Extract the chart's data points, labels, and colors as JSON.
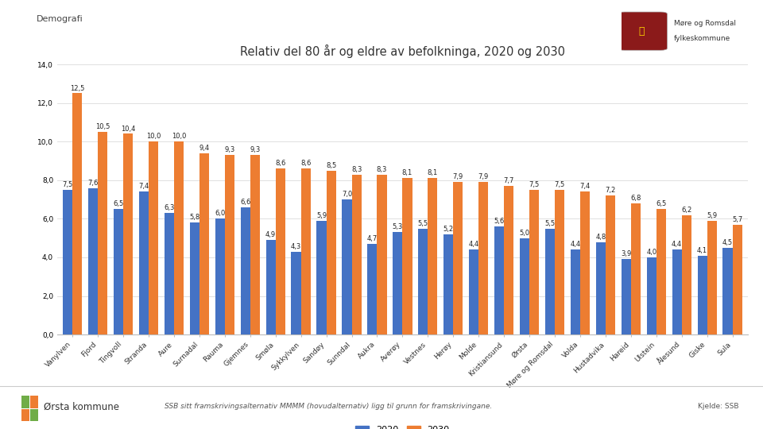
{
  "title": "Relativ del 80 år og eldre av befolkninga, 2020 og 2030",
  "categories_display": [
    "Vanylven",
    "Fjord",
    "Tingvoll",
    "Stranda",
    "Aure",
    "Surnadal",
    "Rauma",
    "Gjemnes",
    "Smøla",
    "Sykkylven",
    "Sandøy",
    "Sunndal",
    "Aukra",
    "Averøy",
    "Vestnes",
    "Herøy",
    "Molde",
    "Kristiansund",
    "Ørsta",
    "Møre og Romsdal",
    "Volda",
    "Hustadvika",
    "Hareid",
    "Ulstein",
    "Ålesund",
    "Giske",
    "Sula"
  ],
  "values_2020": [
    7.5,
    7.6,
    6.5,
    7.4,
    6.3,
    5.8,
    6.0,
    6.6,
    4.9,
    4.3,
    5.9,
    7.0,
    4.7,
    5.3,
    5.5,
    5.2,
    4.4,
    5.6,
    5.0,
    5.5,
    4.4,
    4.8,
    3.9,
    4.0,
    4.4,
    4.1,
    4.5
  ],
  "values_2030": [
    12.5,
    10.5,
    10.4,
    10.0,
    10.0,
    9.4,
    9.3,
    9.3,
    8.6,
    8.6,
    8.5,
    8.3,
    8.3,
    8.1,
    8.1,
    7.9,
    7.9,
    7.7,
    7.5,
    7.5,
    7.4,
    7.2,
    6.8,
    6.5,
    6.2,
    5.9,
    5.7
  ],
  "color_2020": "#4472C4",
  "color_2030": "#ED7D31",
  "ylim": [
    0,
    14.0
  ],
  "yticks": [
    0.0,
    2.0,
    4.0,
    6.0,
    8.0,
    10.0,
    12.0,
    14.0
  ],
  "legend_2020": "2020",
  "legend_2030": "2030",
  "footer_left": "Ørsta kommune",
  "footer_center": "SSB sitt framskrivingsalternativ MMMM (hovudalternativ) ligg til grunn for framskrivingane.",
  "footer_right": "Kjelde: SSB",
  "header_text": "Demografi",
  "bar_width": 0.38,
  "title_fontsize": 10.5,
  "tick_fontsize": 6.5,
  "label_fontsize": 6.0,
  "background_color": "#FFFFFF",
  "grid_color": "#E0E0E0"
}
